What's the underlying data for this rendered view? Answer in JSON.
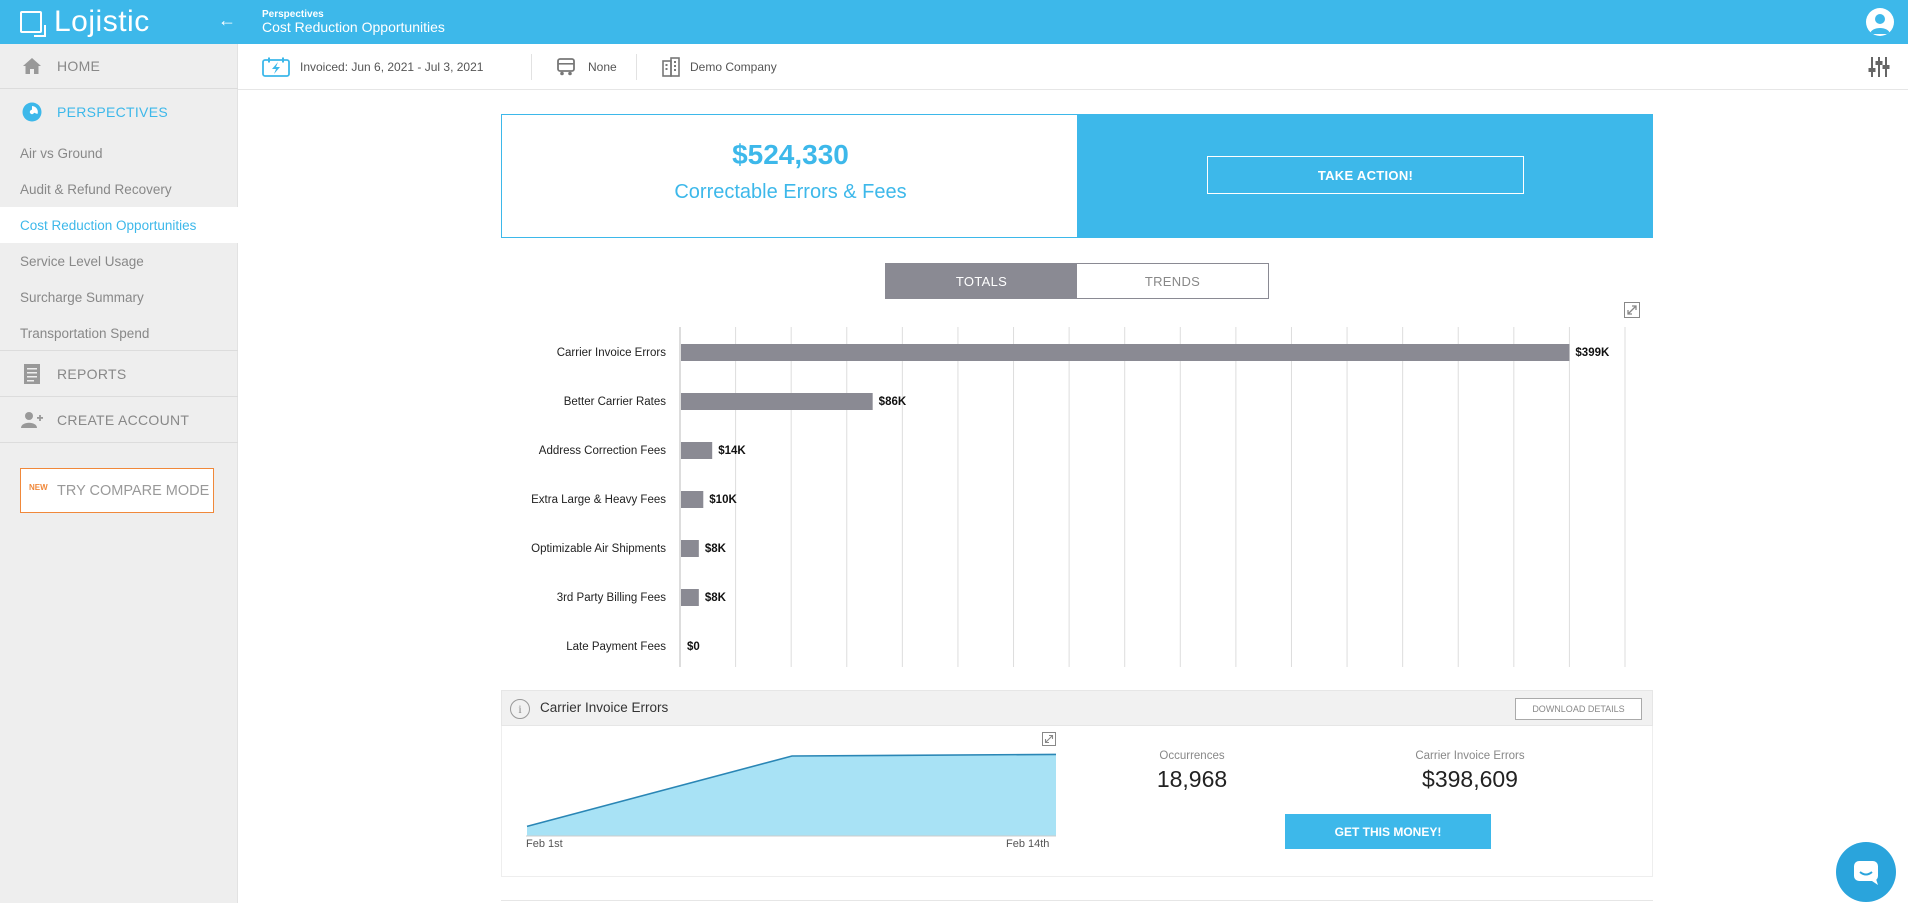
{
  "app": {
    "name": "Lojistic"
  },
  "header": {
    "section": "Perspectives",
    "title": "Cost Reduction Opportunities"
  },
  "sidebar": {
    "home": "HOME",
    "perspectives": "PERSPECTIVES",
    "items": [
      {
        "label": "Air vs Ground"
      },
      {
        "label": "Audit & Refund Recovery"
      },
      {
        "label": "Cost Reduction Opportunities",
        "active": true
      },
      {
        "label": "Service Level Usage"
      },
      {
        "label": "Surcharge Summary"
      },
      {
        "label": "Transportation Spend"
      }
    ],
    "reports": "REPORTS",
    "create_account": "CREATE ACCOUNT",
    "compare": {
      "badge": "NEW",
      "label": "TRY COMPARE MODE"
    }
  },
  "filters": {
    "date": "Invoiced: Jun 6, 2021 - Jul 3, 2021",
    "carrier": "None",
    "company": "Demo Company"
  },
  "hero": {
    "amount": "$524,330",
    "subtitle": "Correctable Errors & Fees",
    "action_label": "TAKE ACTION!"
  },
  "toggle": {
    "totals": "TOTALS",
    "trends": "TRENDS",
    "selected": "TOTALS"
  },
  "colors": {
    "accent": "#3db8ea",
    "bar": "#8a8a93",
    "area_fill": "#a8e2f5",
    "area_line": "#2a86b5"
  },
  "chart_data": {
    "type": "bar",
    "orientation": "horizontal",
    "categories": [
      "Carrier Invoice Errors",
      "Better Carrier Rates",
      "Address Correction Fees",
      "Extra Large & Heavy Fees",
      "Optimizable Air Shipments",
      "3rd Party Billing Fees",
      "Late Payment Fees"
    ],
    "values": [
      398609,
      86000,
      14000,
      10000,
      8000,
      8000,
      0
    ],
    "value_labels": [
      "$399K",
      "$86K",
      "$14K",
      "$10K",
      "$8K",
      "$8K",
      "$0"
    ],
    "grid": true
  },
  "detail": {
    "title": "Carrier Invoice Errors",
    "download_label": "DOWNLOAD DETAILS",
    "occurrences_label": "Occurrences",
    "occurrences_value": "18,968",
    "amount_label": "Carrier Invoice Errors",
    "amount_value": "$398,609",
    "cta_label": "GET THIS MONEY!",
    "trend": {
      "type": "area",
      "x_labels": [
        "Feb 1st",
        "Feb 14th"
      ],
      "points": [
        0.12,
        1.0,
        1.02
      ]
    }
  }
}
